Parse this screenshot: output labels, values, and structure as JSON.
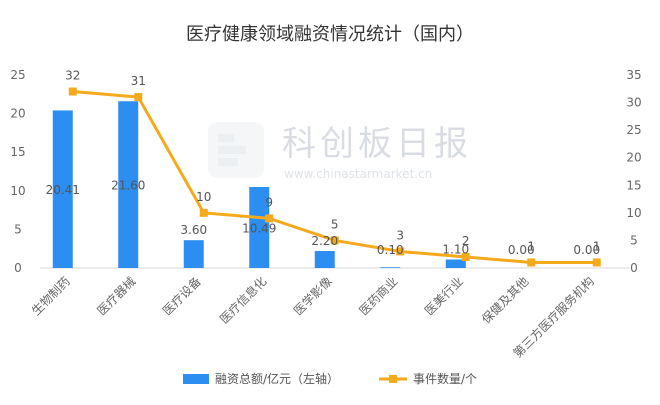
{
  "chart_data": {
    "type": "bar",
    "title": "医疗健康领域融资情况统计（国内）",
    "categories": [
      "生物制药",
      "医疗器械",
      "医疗设备",
      "医疗信息化",
      "医学影像",
      "医药商业",
      "医美行业",
      "保健及其他",
      "第三方医疗服务机构"
    ],
    "series": [
      {
        "name": "融资总额/亿元（左轴）",
        "type": "bar",
        "axis": "left",
        "values": [
          20.41,
          21.6,
          3.6,
          10.49,
          2.2,
          0.1,
          1.1,
          0.0,
          0.0
        ],
        "labels": [
          "20.41",
          "21.60",
          "3.60",
          "10.49",
          "2.20",
          "0.10",
          "1.10",
          "0.00",
          "0.00"
        ],
        "color": "#2b8ef0"
      },
      {
        "name": "事件数量/个",
        "type": "line",
        "axis": "right",
        "values": [
          32,
          31,
          10,
          9,
          5,
          3,
          2,
          1,
          1
        ],
        "labels": [
          "32",
          "31",
          "10",
          "9",
          "5",
          "3",
          "2",
          "1",
          "1"
        ],
        "color": "#f5a91c"
      }
    ],
    "y_left": {
      "min": 0,
      "max": 25,
      "ticks": [
        "0",
        "5",
        "10",
        "15",
        "20",
        "25"
      ]
    },
    "y_right": {
      "min": 0,
      "max": 35,
      "ticks": [
        "0",
        "5",
        "10",
        "15",
        "20",
        "25",
        "30",
        "35"
      ]
    },
    "legend_position": "bottom",
    "grid": false
  },
  "watermark": {
    "text": "科创板日报",
    "url": "www.chinastarmarket.cn"
  }
}
